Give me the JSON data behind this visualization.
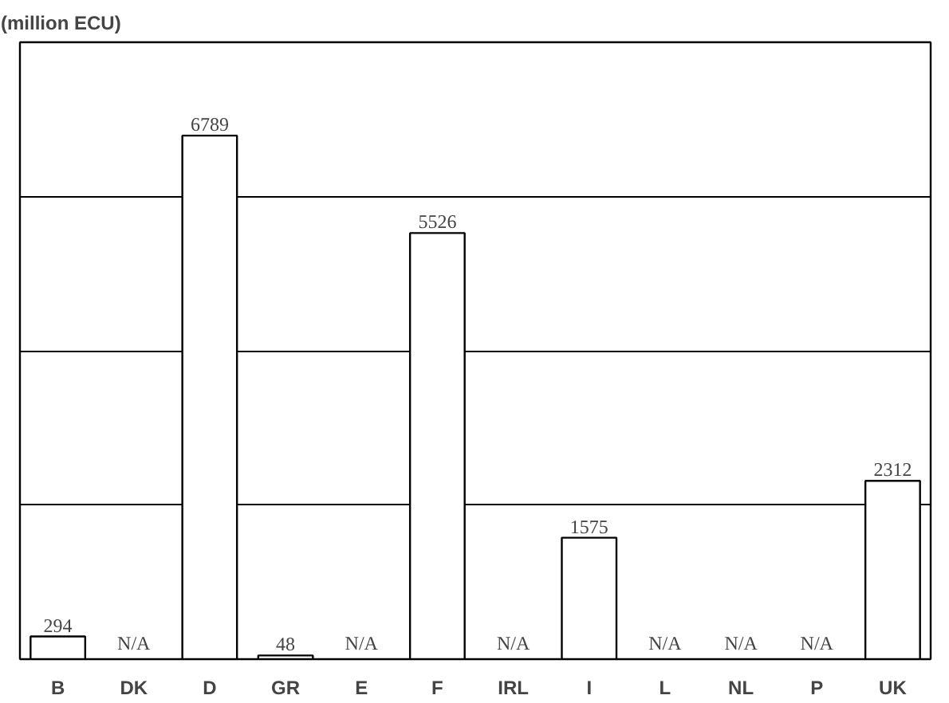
{
  "chart_data": {
    "type": "bar",
    "ylabel": "(million ECU)",
    "categories": [
      "B",
      "DK",
      "D",
      "GR",
      "E",
      "F",
      "IRL",
      "I",
      "L",
      "NL",
      "P",
      "UK"
    ],
    "values": [
      294,
      null,
      6789,
      48,
      null,
      5526,
      null,
      1575,
      null,
      null,
      null,
      2312
    ],
    "value_labels": [
      "294",
      "N/A",
      "6789",
      "48",
      "N/A",
      "5526",
      "N/A",
      "1575",
      "N/A",
      "N/A",
      "N/A",
      "2312"
    ],
    "color": "#ffffff",
    "ylim": [
      0,
      8000
    ],
    "yticks": [
      {
        "value": 2000,
        "label": null
      },
      {
        "value": 4000,
        "label": null
      },
      {
        "value": 6000,
        "label": null
      }
    ],
    "grid": "y",
    "tick_labels": "x"
  }
}
